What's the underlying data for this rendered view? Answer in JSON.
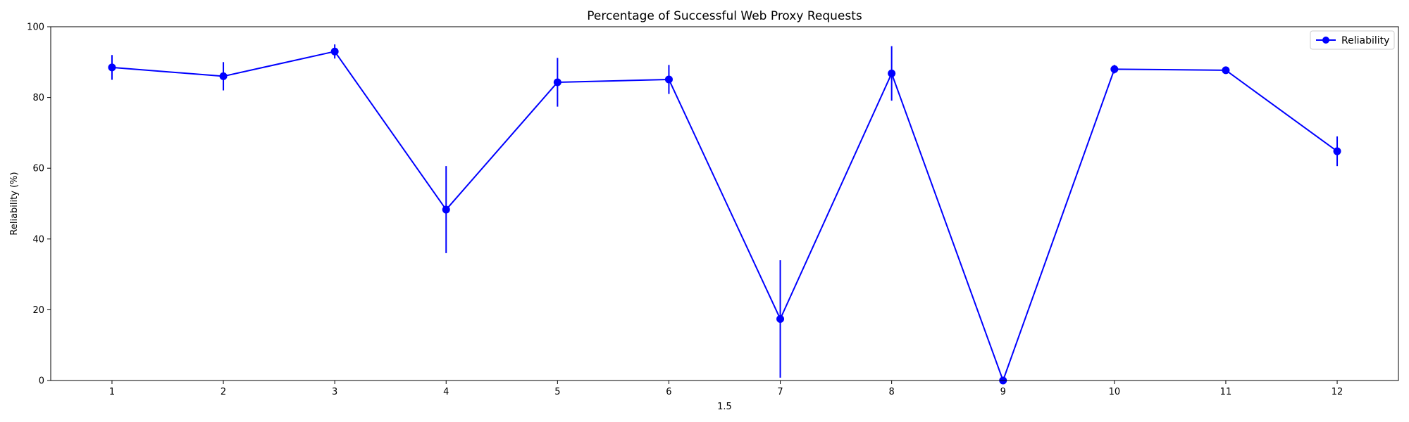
{
  "chart_data": {
    "type": "line",
    "title": "Percentage of Successful Web Proxy Requests",
    "xlabel": "1.5",
    "ylabel": "Reliability (%)",
    "x": [
      1,
      2,
      3,
      4,
      5,
      6,
      7,
      8,
      9,
      10,
      11,
      12
    ],
    "xlim": [
      0.45,
      12.55
    ],
    "ylim": [
      0,
      100
    ],
    "xticks": [
      1,
      2,
      3,
      4,
      5,
      6,
      7,
      8,
      9,
      10,
      11,
      12
    ],
    "yticks": [
      0,
      20,
      40,
      60,
      80,
      100
    ],
    "grid": false,
    "legend_position": "top-right",
    "series": [
      {
        "name": "Reliability",
        "color": "#0000ff",
        "marker": "circle",
        "values": [
          88.5,
          86.0,
          93.0,
          48.3,
          84.3,
          85.1,
          17.4,
          86.8,
          0.0,
          88.0,
          87.7,
          64.8
        ],
        "errors": [
          3.5,
          4.0,
          2.0,
          12.3,
          6.9,
          4.1,
          16.6,
          7.7,
          0.0,
          1.2,
          0.6,
          4.2
        ]
      }
    ]
  }
}
